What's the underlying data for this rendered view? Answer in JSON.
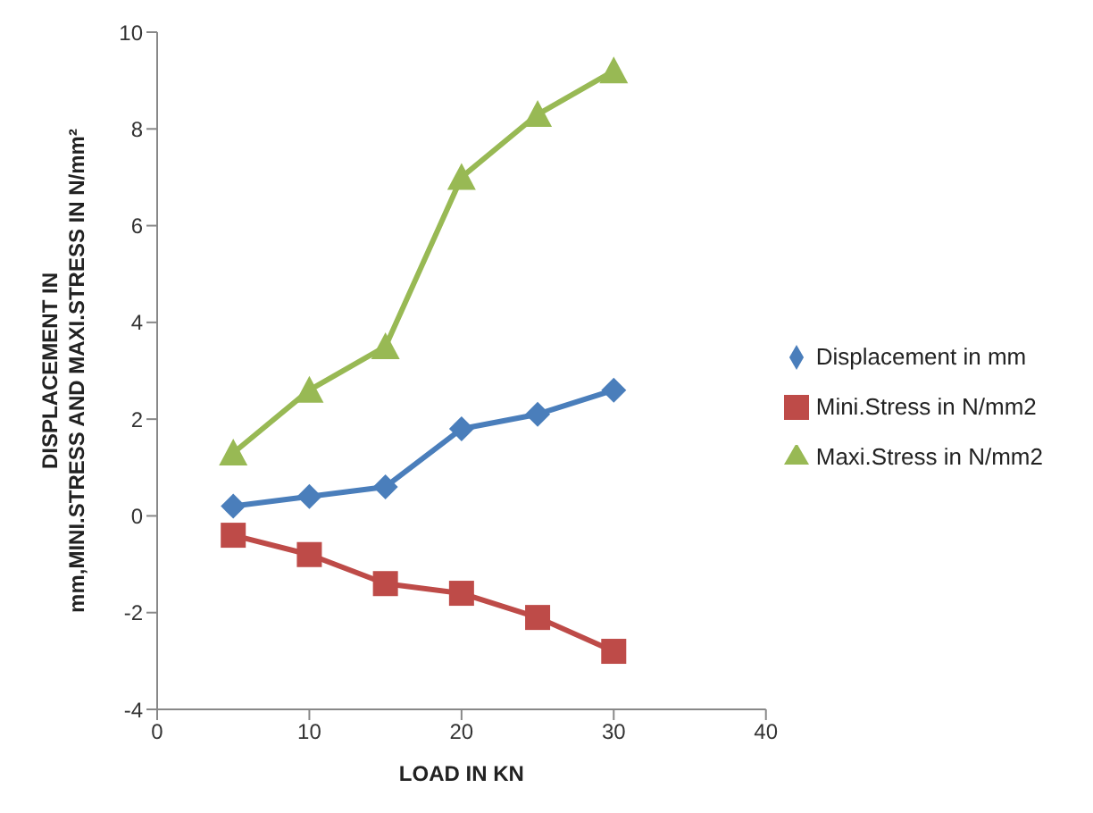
{
  "chart_data": {
    "type": "line",
    "xlabel": "LOAD IN KN",
    "ylabel": "DISPLACEMENT IN mm,MINI.STRESS AND MAXI.STRESS  IN N/mm²",
    "x": [
      5,
      10,
      15,
      20,
      25,
      30
    ],
    "xlim": [
      0,
      40
    ],
    "xticks": [
      0,
      10,
      20,
      30,
      40
    ],
    "ylim": [
      -4,
      10
    ],
    "yticks": [
      -4,
      -2,
      0,
      2,
      4,
      6,
      8,
      10
    ],
    "grid": false,
    "legend": "right",
    "series": [
      {
        "name": "Displacement in mm",
        "color": "#4a7ebb",
        "marker": "diamond",
        "values": [
          0.2,
          0.4,
          0.6,
          1.8,
          2.1,
          2.6
        ]
      },
      {
        "name": "Mini.Stress in N/mm2",
        "color": "#be4b48",
        "marker": "square",
        "values": [
          -0.4,
          -0.8,
          -1.4,
          -1.6,
          -2.1,
          -2.8
        ]
      },
      {
        "name": "Maxi.Stress in N/mm2",
        "color": "#98b954",
        "marker": "triangle",
        "values": [
          1.3,
          2.6,
          3.5,
          7.0,
          8.3,
          9.2
        ]
      }
    ]
  }
}
